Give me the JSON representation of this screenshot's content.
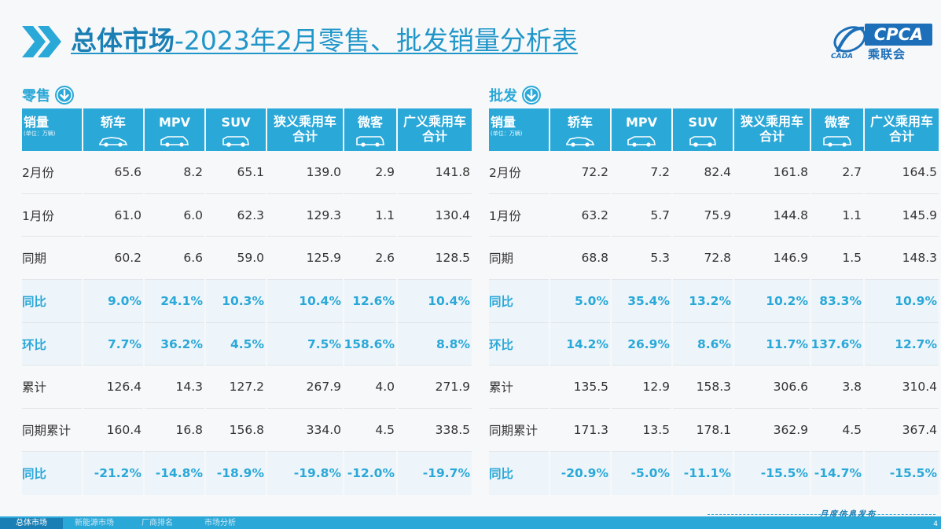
{
  "header": {
    "title_bold": "总体市场",
    "title_rest": "-2023年2月零售、批发销量分析表"
  },
  "logo": {
    "abbr": "CPCA",
    "cn": "乘联会",
    "small": "CADA"
  },
  "columns": {
    "first": "销量",
    "first_unit": "(单位：万辆)",
    "sedan": "轿车",
    "mpv": "MPV",
    "suv": "SUV",
    "narrow_line1": "狭义乘用车",
    "narrow_line2": "合计",
    "mini": "微客",
    "broad_line1": "广义乘用车",
    "broad_line2": "合计"
  },
  "retail": {
    "label": "零售",
    "rows": [
      {
        "label": "2月份",
        "v": [
          "65.6",
          "8.2",
          "65.1",
          "139.0",
          "2.9",
          "141.8"
        ],
        "hl": false
      },
      {
        "label": "1月份",
        "v": [
          "61.0",
          "6.0",
          "62.3",
          "129.3",
          "1.1",
          "130.4"
        ],
        "hl": false
      },
      {
        "label": "同期",
        "v": [
          "60.2",
          "6.6",
          "59.0",
          "125.9",
          "2.6",
          "128.5"
        ],
        "hl": false
      },
      {
        "label": "同比",
        "v": [
          "9.0%",
          "24.1%",
          "10.3%",
          "10.4%",
          "12.6%",
          "10.4%"
        ],
        "hl": true
      },
      {
        "label": "环比",
        "v": [
          "7.7%",
          "36.2%",
          "4.5%",
          "7.5%",
          "158.6%",
          "8.8%"
        ],
        "hl": true
      },
      {
        "label": "累计",
        "v": [
          "126.4",
          "14.3",
          "127.2",
          "267.9",
          "4.0",
          "271.9"
        ],
        "hl": false
      },
      {
        "label": "同期累计",
        "v": [
          "160.4",
          "16.8",
          "156.8",
          "334.0",
          "4.5",
          "338.5"
        ],
        "hl": false
      },
      {
        "label": "同比",
        "v": [
          "-21.2%",
          "-14.8%",
          "-18.9%",
          "-19.8%",
          "-12.0%",
          "-19.7%"
        ],
        "hl": true
      }
    ]
  },
  "wholesale": {
    "label": "批发",
    "rows": [
      {
        "label": "2月份",
        "v": [
          "72.2",
          "7.2",
          "82.4",
          "161.8",
          "2.7",
          "164.5"
        ],
        "hl": false
      },
      {
        "label": "1月份",
        "v": [
          "63.2",
          "5.7",
          "75.9",
          "144.8",
          "1.1",
          "145.9"
        ],
        "hl": false
      },
      {
        "label": "同期",
        "v": [
          "68.8",
          "5.3",
          "72.8",
          "146.9",
          "1.5",
          "148.3"
        ],
        "hl": false
      },
      {
        "label": "同比",
        "v": [
          "5.0%",
          "35.4%",
          "13.2%",
          "10.2%",
          "83.3%",
          "10.9%"
        ],
        "hl": true
      },
      {
        "label": "环比",
        "v": [
          "14.2%",
          "26.9%",
          "8.6%",
          "11.7%",
          "137.6%",
          "12.7%"
        ],
        "hl": true
      },
      {
        "label": "累计",
        "v": [
          "135.5",
          "12.9",
          "158.3",
          "306.6",
          "3.8",
          "310.4"
        ],
        "hl": false
      },
      {
        "label": "同期累计",
        "v": [
          "171.3",
          "13.5",
          "178.1",
          "362.9",
          "4.5",
          "367.4"
        ],
        "hl": false
      },
      {
        "label": "同比",
        "v": [
          "-20.9%",
          "-5.0%",
          "-11.1%",
          "-15.5%",
          "-14.7%",
          "-15.5%"
        ],
        "hl": true
      }
    ]
  },
  "footer": {
    "tabs": [
      "总体市场",
      "新能源市场",
      "厂商排名",
      "市场分析"
    ],
    "right_text": "月度信息发布",
    "page": "4"
  },
  "colors": {
    "accent": "#2aa8d8",
    "title": "#2196c9",
    "highlight_bg": "#eef5fa"
  }
}
